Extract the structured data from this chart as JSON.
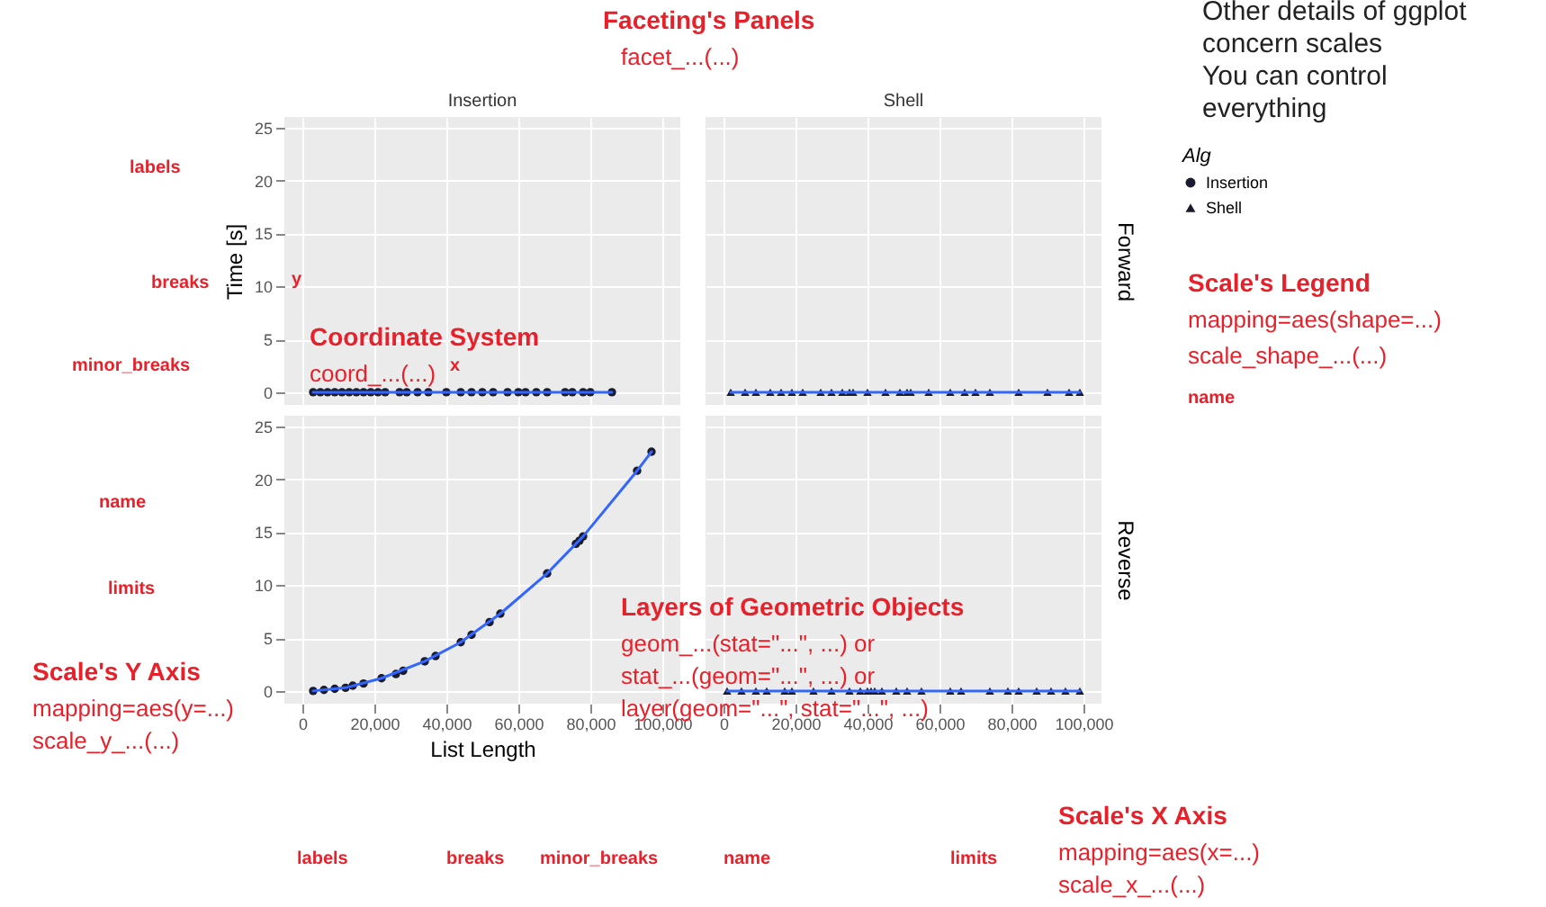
{
  "chart_data": [
    {
      "type": "scatter",
      "title": "Insertion",
      "ylabel": "Time [s]",
      "xlim": [
        -5000,
        105000
      ],
      "ylim": [
        -1.2,
        26
      ],
      "xticks": [
        0,
        20000,
        40000,
        60000,
        80000,
        100000
      ],
      "yticks": [
        0,
        5,
        10,
        15,
        20,
        25
      ],
      "grid": true,
      "tick_labels": "y",
      "series": [
        {
          "name": "Insertion",
          "color": "#1b1b2f",
          "marker": "circle",
          "x": [
            3000,
            5000,
            7000,
            9000,
            11000,
            13000,
            15000,
            17000,
            19000,
            21000,
            23000,
            27000,
            29000,
            32000,
            35000,
            40000,
            44000,
            47000,
            50000,
            53000,
            57000,
            60000,
            62000,
            65000,
            68000,
            73000,
            75000,
            78000,
            80000,
            86000
          ],
          "values": [
            0,
            0,
            0,
            0,
            0,
            0,
            0,
            0,
            0,
            0,
            0,
            0,
            0,
            0,
            0,
            0,
            0,
            0,
            0,
            0,
            0,
            0,
            0,
            0,
            0,
            0,
            0,
            0,
            0,
            0
          ]
        },
        {
          "type": "line",
          "color": "#3366ff",
          "x": [
            3000,
            86000
          ],
          "values": [
            0,
            0
          ]
        }
      ],
      "annotations": [
        "Faceting's Panels",
        "facet_...(...)",
        "Other details of ggplot",
        "concern scales",
        "You can control",
        "everything",
        "labels",
        "breaks",
        "minor_breaks",
        "name",
        "limits",
        "Coordinate System",
        "coord_...(...)",
        "Scale's Legend",
        "mapping=aes(shape=...)",
        "scale_shape_...(...)",
        "name",
        "Layers of Geometric Objects",
        "geom_...(stat=\"...\", ...) or",
        "stat_...(geom=\"...\", ...) or",
        "layer(geom=\"...\", stat=\"...\", ...)",
        "Scale's Y Axis",
        "mapping=aes(y=...)",
        "scale_y_...(...)",
        "labels",
        "breaks",
        "minor_breaks",
        "name",
        "limits",
        "Scale's X Axis",
        "mapping=aes(x=...)",
        "scale_x_...(...)",
        "y",
        "x"
      ]
    },
    {
      "type": "scatter",
      "title": "Shell",
      "y2label": "Forward",
      "legend": "right",
      "legend_title": "Alg",
      "xlim": [
        -5000,
        105000
      ],
      "ylim": [
        -1.2,
        26
      ],
      "xticks": [
        0,
        20000,
        40000,
        60000,
        80000,
        100000
      ],
      "yticks": [
        0,
        5,
        10,
        15,
        20,
        25
      ],
      "grid": true,
      "tick_labels": false,
      "series": [
        {
          "name": "Shell",
          "color": "#1b1b2f",
          "marker": "triangle",
          "x": [
            2000,
            6000,
            9000,
            13000,
            16000,
            19000,
            22000,
            27000,
            30000,
            33000,
            35000,
            36000,
            40000,
            45000,
            49000,
            51000,
            52000,
            57000,
            63000,
            67000,
            70000,
            74000,
            82000,
            90000,
            96000,
            99000
          ],
          "values": [
            0,
            0,
            0,
            0,
            0,
            0,
            0,
            0,
            0,
            0,
            0,
            0,
            0,
            0,
            0,
            0,
            0,
            0,
            0,
            0,
            0,
            0,
            0,
            0,
            0,
            0
          ]
        },
        {
          "type": "line",
          "color": "#3366ff",
          "x": [
            2000,
            99000
          ],
          "values": [
            0,
            0
          ]
        }
      ]
    },
    {
      "type": "scatter",
      "xlabel": "List Length",
      "xlim": [
        -5000,
        105000
      ],
      "ylim": [
        -1.2,
        26
      ],
      "xticks": [
        0,
        {
          "value": 20000,
          "label": "20,000"
        },
        {
          "value": 40000,
          "label": "40,000"
        },
        {
          "value": 60000,
          "label": "60,000"
        },
        {
          "value": 80000,
          "label": "80,000"
        },
        {
          "value": 100000,
          "label": "100,000"
        }
      ],
      "yticks": [
        0,
        5,
        10,
        15,
        20,
        25
      ],
      "grid": true,
      "series": [
        {
          "color": "#1b1b2f",
          "marker": "circle",
          "x": [
            3000,
            6000,
            9000,
            12000,
            14000,
            17000,
            22000,
            26000,
            28000,
            34000,
            37000,
            44000,
            47000,
            52000,
            55000,
            68000,
            76000,
            77000,
            78000,
            93000,
            97000
          ],
          "values": [
            0.0,
            0.1,
            0.2,
            0.3,
            0.5,
            0.7,
            1.2,
            1.6,
            1.9,
            2.8,
            3.3,
            4.6,
            5.3,
            6.5,
            7.3,
            11.1,
            13.9,
            14.2,
            14.6,
            20.8,
            22.6
          ]
        },
        {
          "type": "line",
          "color": "#3366ff",
          "x": [
            3000,
            12000,
            22000,
            34000,
            44000,
            55000,
            68000,
            78000,
            93000,
            97000
          ],
          "values": [
            0.0,
            0.3,
            1.2,
            2.8,
            4.6,
            7.3,
            11.1,
            14.6,
            20.8,
            22.6
          ]
        }
      ]
    },
    {
      "type": "scatter",
      "y2label": "Reverse",
      "xlim": [
        -5000,
        105000
      ],
      "ylim": [
        -1.2,
        26
      ],
      "xticks": [
        0,
        {
          "value": 20000,
          "label": "20,000"
        },
        {
          "value": 40000,
          "label": "40,000"
        },
        {
          "value": 60000,
          "label": "60,000"
        },
        {
          "value": 80000,
          "label": "80,000"
        },
        {
          "value": 100000,
          "label": "100,000"
        }
      ],
      "yticks": [
        0,
        5,
        10,
        15,
        20,
        25
      ],
      "grid": true,
      "tick_labels": "x",
      "series": [
        {
          "color": "#1b1b2f",
          "marker": "triangle",
          "x": [
            1000,
            5000,
            9000,
            12000,
            17000,
            19000,
            25000,
            30000,
            35000,
            38000,
            40000,
            41000,
            42000,
            44000,
            48000,
            51000,
            55000,
            63000,
            66000,
            74000,
            79000,
            82000,
            87000,
            91000,
            95000,
            99000
          ],
          "values": [
            0,
            0,
            0,
            0,
            0,
            0,
            0,
            0,
            0,
            0,
            0,
            0,
            0,
            0,
            0,
            0,
            0,
            0,
            0,
            0,
            0,
            0,
            0,
            0,
            0,
            0
          ]
        },
        {
          "type": "line",
          "color": "#3366ff",
          "x": [
            1000,
            99000
          ],
          "values": [
            0,
            0
          ]
        }
      ]
    }
  ]
}
